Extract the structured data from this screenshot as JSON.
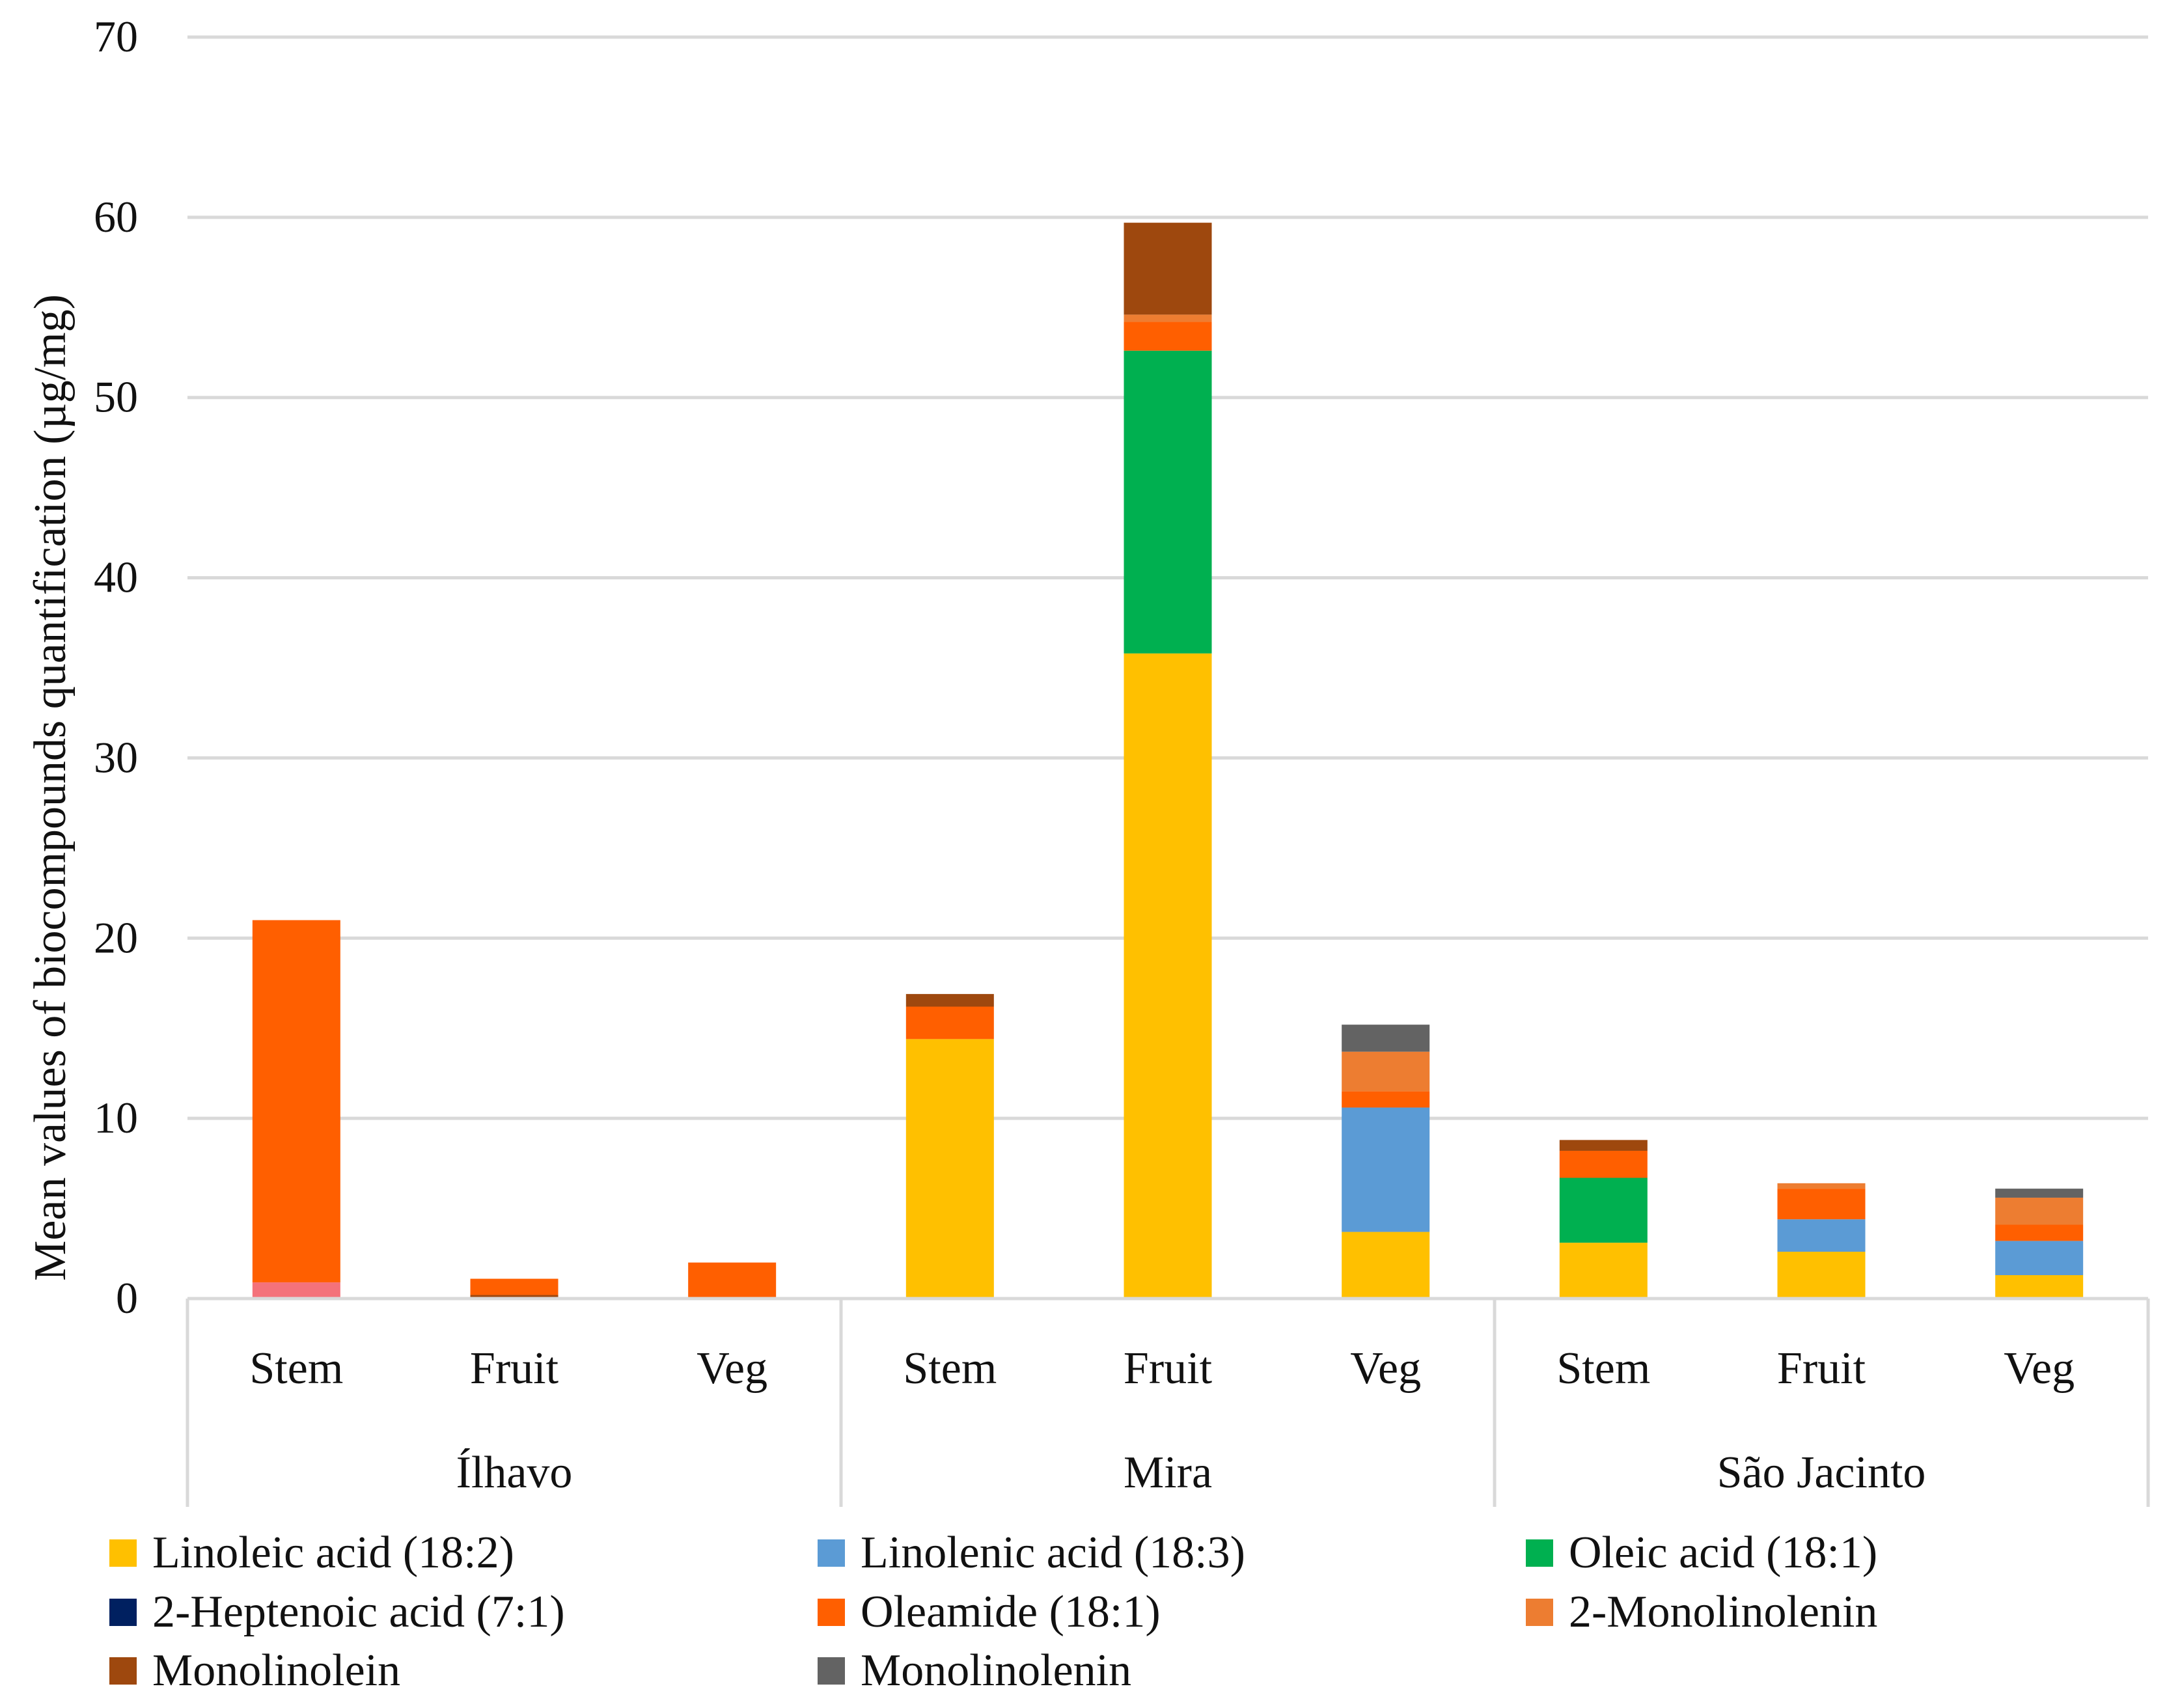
{
  "chart_data": {
    "type": "bar",
    "stacked": true,
    "title": "",
    "xlabel": "",
    "ylabel": "Mean values of biocompounds  quantification (µg/mg)",
    "ylim": [
      0,
      70
    ],
    "yticks": [
      0,
      10,
      20,
      30,
      40,
      50,
      60,
      70
    ],
    "grid": true,
    "legend_position": "bottom",
    "groups": [
      {
        "name": "Ílhavo",
        "categories": [
          "Stem",
          "Fruit",
          "Veg"
        ]
      },
      {
        "name": "Mira",
        "categories": [
          "Stem",
          "Fruit",
          "Veg"
        ]
      },
      {
        "name": "São Jacinto",
        "categories": [
          "Stem",
          "Fruit",
          "Veg"
        ]
      }
    ],
    "series": [
      {
        "name": "Linoleic acid (18:2)",
        "color": "#FFC000",
        "values": [
          0,
          0,
          0,
          14.4,
          35.8,
          3.7,
          3.1,
          2.6,
          1.3
        ]
      },
      {
        "name": "Linolenic acid (18:3)",
        "color": "#5B9BD5",
        "values": [
          0,
          0,
          0,
          0,
          0,
          6.9,
          0,
          1.8,
          1.9
        ]
      },
      {
        "name": "Oleic acid (18:1)",
        "color": "#00B050",
        "values": [
          0,
          0,
          0,
          0,
          16.8,
          0,
          3.6,
          0,
          0
        ]
      },
      {
        "name": "2-Heptenoic acid (7:1)",
        "color": "#002060",
        "values": [
          0,
          0,
          0,
          0,
          0,
          0,
          0,
          0,
          0
        ]
      },
      {
        "name": "Oleamide (18:1)",
        "color": "#FF5F00",
        "values": [
          20.1,
          0.9,
          2.0,
          1.8,
          1.6,
          0.9,
          1.5,
          1.7,
          0.9
        ]
      },
      {
        "name": "2-Monolinolenin",
        "color": "#ED7D31",
        "values": [
          0,
          0,
          0,
          0,
          0.4,
          2.2,
          0,
          0.3,
          1.5
        ]
      },
      {
        "name": "Monolinolein",
        "color": "#9E480E",
        "values": [
          0,
          0,
          0,
          0.7,
          5.1,
          0,
          0.6,
          0,
          0
        ]
      },
      {
        "name": "Monolinolenin",
        "color": "#636363",
        "values": [
          0,
          0,
          0,
          0,
          0,
          1.5,
          0,
          0,
          0.5
        ]
      }
    ],
    "extra_segments": [
      {
        "bar_index": 0,
        "color": "#F4727A",
        "value": 0.9,
        "position": "bottom"
      },
      {
        "bar_index": 1,
        "color": "#9E480E",
        "value": 0.2,
        "position": "bottom"
      }
    ]
  }
}
